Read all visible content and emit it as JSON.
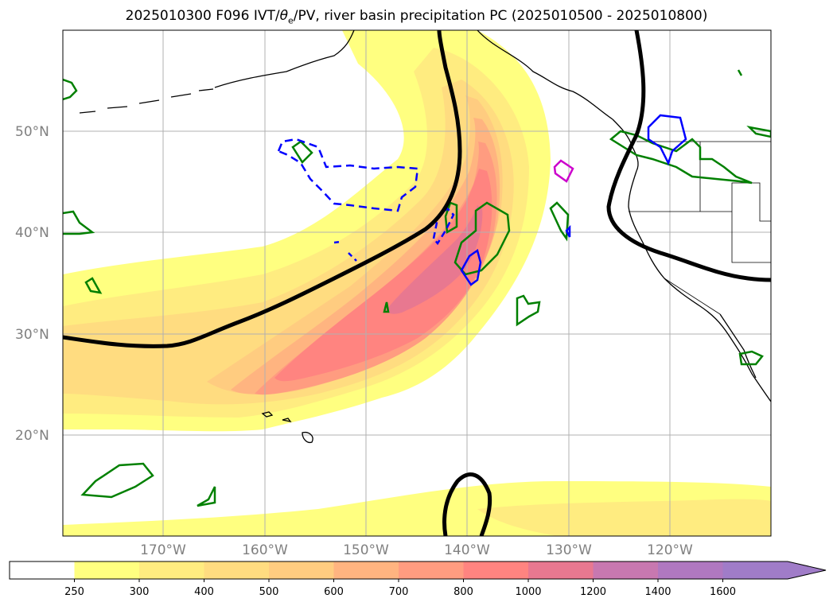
{
  "title": "2025010300 F096 IVT/θe/PV, river basin precipitation PC (2025010500 - 2025010800)",
  "title_parts": {
    "before": "2025010300 F096 IVT/",
    "theta": "θ",
    "sub": "e",
    "after": "/PV, river basin precipitation PC (2025010500 - 2025010800)"
  },
  "lat_labels": [
    "50°N",
    "40°N",
    "30°N",
    "20°N"
  ],
  "lon_labels": [
    "170°W",
    "160°W",
    "150°W",
    "140°W",
    "130°W",
    "120°W"
  ],
  "colorbar": {
    "levels": [
      "250",
      "300",
      "400",
      "500",
      "600",
      "700",
      "800",
      "1000",
      "1200",
      "1400",
      "1600"
    ],
    "colors": [
      "#ffffff",
      "#ffff80",
      "#ffec80",
      "#ffdc80",
      "#ffcc80",
      "#ffb480",
      "#ff9c80",
      "#ff8480",
      "#e87890",
      "#c878b0",
      "#b078c0",
      "#a07cc8"
    ]
  },
  "colors": {
    "theta_e": "#000000",
    "pv_green": "#008000",
    "pv_blue": "#0000ff",
    "pv_magenta": "#cc00cc",
    "coast": "#000000",
    "grid": "#b0b0b0"
  }
}
